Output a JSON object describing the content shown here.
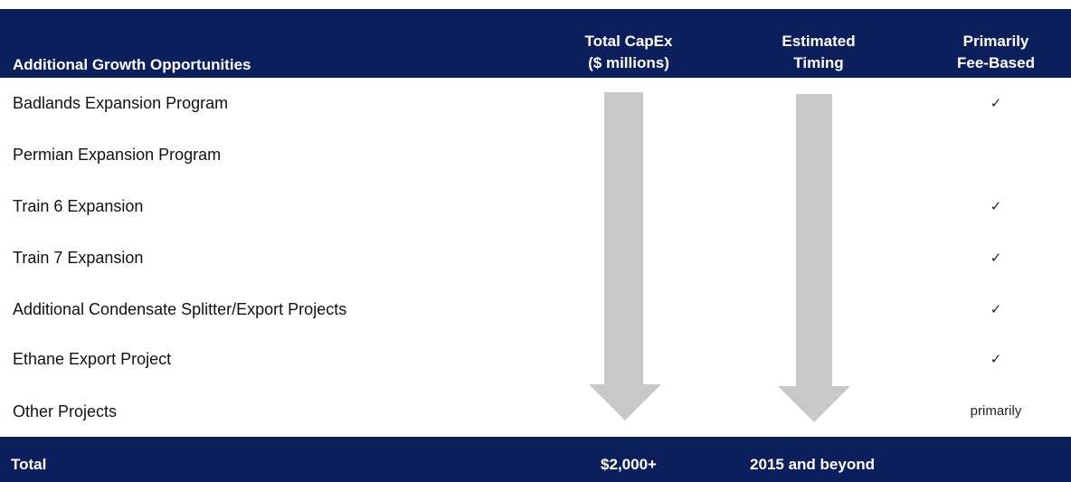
{
  "table": {
    "header": {
      "label": "Additional Growth Opportunities",
      "capex": [
        "Total CapEx",
        "($ millions)"
      ],
      "timing": [
        "Estimated",
        "Timing"
      ],
      "fee": [
        "Primarily",
        "Fee-Based"
      ]
    },
    "rows": [
      {
        "name": "Badlands Expansion Program",
        "fee": "✓"
      },
      {
        "name": "Permian Expansion Program"
      },
      {
        "name": "Train 6 Expansion",
        "fee": "✓"
      },
      {
        "name": "Train 7 Expansion",
        "fee": "✓"
      },
      {
        "name": "Additional Condensate Splitter/Export Projects",
        "fee": "✓"
      },
      {
        "name": "Ethane Export Project",
        "fee": "✓"
      },
      {
        "name": "Other Projects",
        "fee": "primarily"
      }
    ],
    "total": {
      "label": "Total",
      "capex": "$2,000+",
      "timing": "2015 and beyond"
    }
  }
}
